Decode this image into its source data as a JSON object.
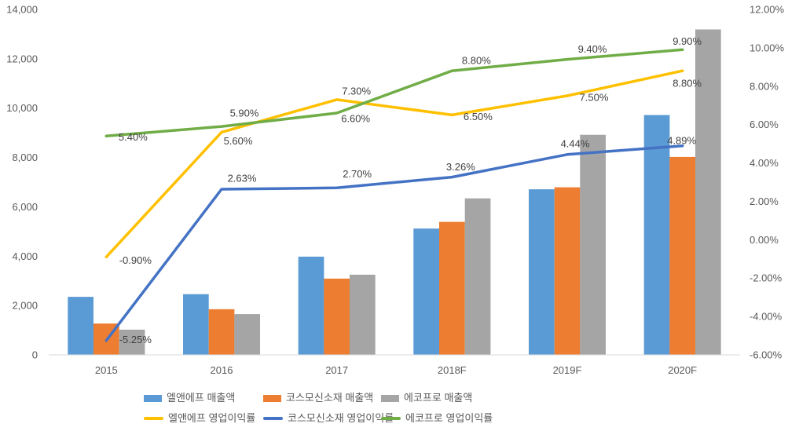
{
  "chart_data": {
    "type": "combo-bar-line",
    "title": "",
    "xlabel": "",
    "ylabel": "",
    "grid": false,
    "categories": [
      "2015",
      "2016",
      "2017",
      "2018F",
      "2019F",
      "2020F"
    ],
    "bar_series": [
      {
        "name": "엘앤에프 매출액",
        "color": "#5B9BD5",
        "axis": "left",
        "values": [
          2350,
          2460,
          3980,
          5120,
          6710,
          9720
        ]
      },
      {
        "name": "코스모신소재 매출액",
        "color": "#ED7D31",
        "axis": "left",
        "values": [
          1270,
          1850,
          3090,
          5390,
          6790,
          8020
        ]
      },
      {
        "name": "에코프로 매출액",
        "color": "#A5A5A5",
        "axis": "left",
        "values": [
          1020,
          1650,
          3250,
          6340,
          8920,
          13190
        ]
      }
    ],
    "line_series": [
      {
        "name": "엘앤에프 영업이익률",
        "color": "#FFC000",
        "axis": "right",
        "values": [
          -0.9,
          5.6,
          7.3,
          6.5,
          7.5,
          8.8
        ],
        "labels": [
          "-0.90%",
          "5.60%",
          "7.30%",
          "6.50%",
          "7.50%",
          "8.80%"
        ]
      },
      {
        "name": "코스모신소재 영업이익률",
        "color": "#4472C4",
        "axis": "right",
        "values": [
          -5.25,
          2.63,
          2.7,
          3.26,
          4.44,
          4.89
        ],
        "labels": [
          "-5.25%",
          "2.63%",
          "2.70%",
          "3.26%",
          "4.44%",
          "4.89%"
        ]
      },
      {
        "name": "에코프로 영업이익률",
        "color": "#70AD47",
        "axis": "right",
        "values": [
          5.4,
          5.9,
          6.6,
          8.8,
          9.4,
          9.9
        ],
        "labels": [
          "5.40%",
          "5.90%",
          "6.60%",
          "8.80%",
          "9.40%",
          "9.90%"
        ]
      }
    ],
    "left_axis": {
      "min": 0,
      "max": 14000,
      "step": 2000,
      "tick_labels": [
        "0",
        "2,000",
        "4,000",
        "6,000",
        "8,000",
        "10,000",
        "12,000",
        "14,000"
      ]
    },
    "right_axis": {
      "min": -6,
      "max": 12,
      "step": 2,
      "tick_labels": [
        "-6.00%",
        "-4.00%",
        "-2.00%",
        "0.00%",
        "2.00%",
        "4.00%",
        "6.00%",
        "8.00%",
        "10.00%",
        "12.00%"
      ]
    },
    "legend": {
      "position": "bottom",
      "rows": 2
    },
    "colors": {
      "axis_line": "#D9D9D9",
      "axis_text": "#595959",
      "data_label_text": "#404040",
      "background": "#FFFFFF"
    }
  }
}
